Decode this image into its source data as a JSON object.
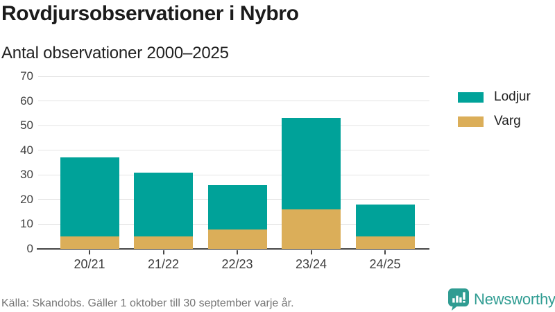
{
  "header": {
    "title": "Rovdjursobservationer i Nybro",
    "subtitle": "Antal observationer 2000–2025"
  },
  "chart_data": {
    "type": "bar",
    "stacked": true,
    "title": "Rovdjursobservationer i Nybro",
    "subtitle": "Antal observationer 2000–2025",
    "categories": [
      "20/21",
      "21/22",
      "22/23",
      "23/24",
      "24/25"
    ],
    "series": [
      {
        "name": "Lodjur",
        "color": "#00a299",
        "values": [
          32,
          26,
          18,
          37,
          13
        ]
      },
      {
        "name": "Varg",
        "color": "#dbae59",
        "values": [
          5,
          5,
          8,
          16,
          5
        ]
      }
    ],
    "totals": [
      37,
      31,
      26,
      53,
      18
    ],
    "ylim": [
      0,
      70
    ],
    "yticks": [
      0,
      10,
      20,
      30,
      40,
      50,
      60,
      70
    ],
    "xlabel": "",
    "ylabel": "",
    "grid": true,
    "legend_position": "right"
  },
  "footer": {
    "source": "Källa: Skandobs. Gäller 1 oktober till 30 september varje år.",
    "brand": "Newsworthy"
  },
  "colors": {
    "lodjur": "#00a299",
    "varg": "#dbae59",
    "axis": "#454545",
    "gridline": "#e3e3e3",
    "brand_teal": "#2f9c92"
  }
}
